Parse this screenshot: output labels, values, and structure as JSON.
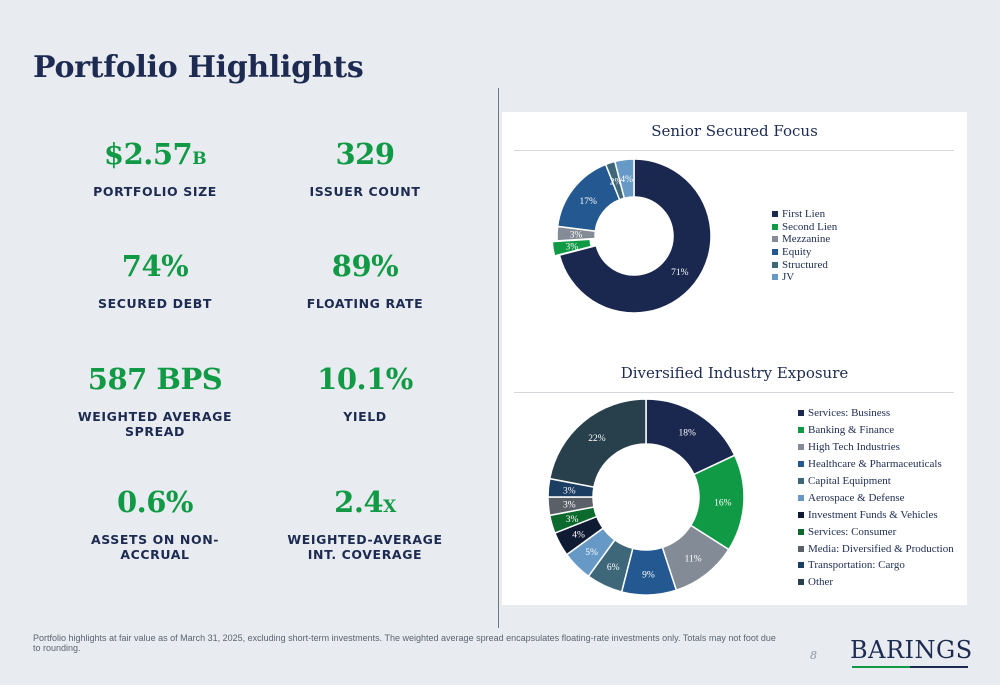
{
  "title": "Portfolio Highlights",
  "stats": [
    {
      "value": "$2.57",
      "suffix": "B",
      "label": "PORTFOLIO SIZE"
    },
    {
      "value": "329",
      "suffix": "",
      "label": "ISSUER COUNT"
    },
    {
      "value": "74%",
      "suffix": "",
      "label": "SECURED DEBT"
    },
    {
      "value": "89%",
      "suffix": "",
      "label": "FLOATING RATE"
    },
    {
      "value": "587 BPS",
      "suffix": "",
      "label": "WEIGHTED AVERAGE SPREAD"
    },
    {
      "value": "10.1%",
      "suffix": "",
      "label": "YIELD"
    },
    {
      "value": "0.6%",
      "suffix": "",
      "label": "ASSETS ON NON-ACCRUAL"
    },
    {
      "value": "2.4",
      "suffix": "X",
      "label": "WEIGHTED-AVERAGE INT. COVERAGE"
    }
  ],
  "chart_data": [
    {
      "type": "pie",
      "donut": true,
      "title": "Senior Secured Focus",
      "legend": "right",
      "categories": [
        "First Lien",
        "Second Lien",
        "Mezzanine",
        "Equity",
        "Structured",
        "JV"
      ],
      "values": [
        71,
        3,
        3,
        17,
        2,
        4
      ],
      "labels": [
        "71%",
        "3%",
        "3%",
        "17%",
        "2%",
        "4%"
      ],
      "colors": [
        "#1a2850",
        "#119a45",
        "#838c96",
        "#245891",
        "#3e6779",
        "#6699c5"
      ],
      "exploded_index": 1
    },
    {
      "type": "pie",
      "donut": true,
      "title": "Diversified Industry Exposure",
      "legend": "right",
      "categories": [
        "Services: Business",
        "Banking & Finance",
        "High Tech Industries",
        "Healthcare & Pharmaceuticals",
        "Capital Equipment",
        "Aerospace & Defense",
        "Investment Funds & Vehicles",
        "Services: Consumer",
        "Media: Diversified & Production",
        "Transportation: Cargo",
        "Other"
      ],
      "values": [
        18,
        16,
        11,
        9,
        6,
        5,
        4,
        3,
        3,
        3,
        22
      ],
      "labels": [
        "18%",
        "16%",
        "11%",
        "9%",
        "6%",
        "5%",
        "4%",
        "3%",
        "3%",
        "3%",
        "22%"
      ],
      "colors": [
        "#1a2850",
        "#119a45",
        "#838c96",
        "#245891",
        "#3e6779",
        "#6699c5",
        "#0f1a33",
        "#0d6a2f",
        "#5a6068",
        "#1d3e63",
        "#27404c"
      ]
    }
  ],
  "footer": "Portfolio highlights at fair value as of March 31, 2025, excluding short-term investments. The weighted average spread encapsulates floating-rate investments only. Totals may not foot due to rounding.",
  "page_number": "8",
  "logo": "BARINGS"
}
